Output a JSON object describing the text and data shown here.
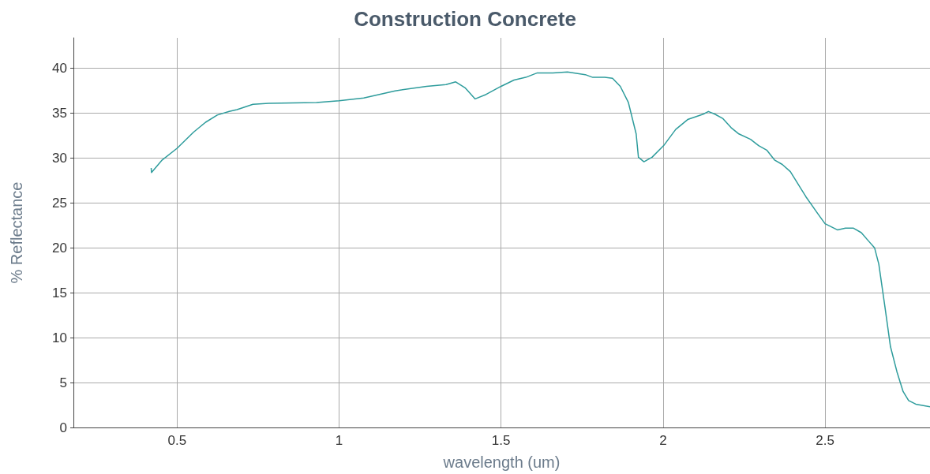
{
  "chart_data": {
    "type": "line",
    "title": "Construction Concrete",
    "xlabel": "wavelength (um)",
    "ylabel": "% Reflectance",
    "xlim": [
      0.18,
      2.824
    ],
    "xticks": [
      0.5,
      1,
      1.5,
      2,
      2.5
    ],
    "ylim": [
      0,
      43.4
    ],
    "yticks": [
      0,
      5,
      10,
      15,
      20,
      25,
      30,
      35,
      40
    ],
    "grid": true,
    "marker": "none",
    "line_style": "solid",
    "series": [
      {
        "color": "#2e9c9c",
        "x": [
          0.42,
          0.421,
          0.454,
          0.5,
          0.551,
          0.588,
          0.624,
          0.661,
          0.685,
          0.734,
          0.783,
          0.93,
          1.0,
          1.076,
          1.173,
          1.27,
          1.33,
          1.36,
          1.39,
          1.42,
          1.454,
          1.5,
          1.54,
          1.576,
          1.612,
          1.66,
          1.705,
          1.76,
          1.783,
          1.82,
          1.844,
          1.868,
          1.893,
          1.917,
          1.924,
          1.941,
          1.966,
          2.002,
          2.039,
          2.076,
          2.124,
          2.14,
          2.16,
          2.185,
          2.21,
          2.234,
          2.27,
          2.295,
          2.32,
          2.344,
          2.368,
          2.393,
          2.441,
          2.478,
          2.5,
          2.539,
          2.563,
          2.588,
          2.612,
          2.636,
          2.653,
          2.666,
          2.685,
          2.702,
          2.722,
          2.741,
          2.758,
          2.78,
          2.824
        ],
        "values": [
          28.9,
          28.4,
          29.8,
          31.1,
          32.9,
          34.0,
          34.8,
          35.2,
          35.4,
          36.0,
          36.1,
          36.2,
          36.4,
          36.7,
          37.5,
          38.0,
          38.2,
          38.5,
          37.8,
          36.6,
          37.1,
          38.0,
          38.7,
          39.0,
          39.5,
          39.5,
          39.6,
          39.3,
          39.0,
          39.0,
          38.9,
          38.0,
          36.2,
          32.7,
          30.1,
          29.6,
          30.1,
          31.4,
          33.2,
          34.3,
          34.9,
          35.2,
          34.9,
          34.4,
          33.4,
          32.7,
          32.1,
          31.4,
          30.9,
          29.8,
          29.3,
          28.5,
          25.7,
          23.8,
          22.7,
          22.0,
          22.2,
          22.2,
          21.7,
          20.7,
          20.0,
          18.2,
          13.4,
          9.0,
          6.2,
          4.0,
          3.0,
          2.6,
          2.3
        ]
      }
    ]
  }
}
